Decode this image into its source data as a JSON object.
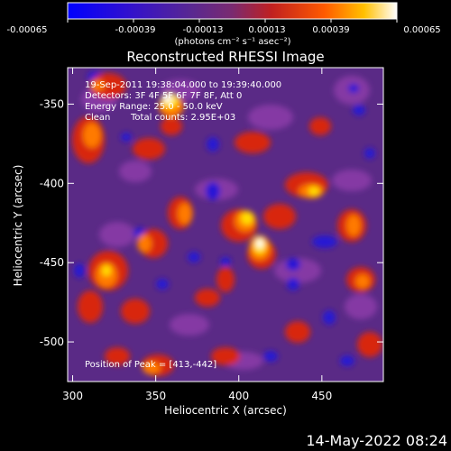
{
  "colorbar": {
    "tick_labels": [
      "-0.00065",
      "-0.00039",
      "-0.00013",
      "0.00013",
      "0.00039",
      "0.00065"
    ],
    "unit_label": "(photons cm⁻² s⁻¹ asec⁻²)",
    "range": [
      -0.00065,
      0.00065
    ]
  },
  "title": "Reconstructed RHESSI Image",
  "info": {
    "time": "19-Sep-2011 19:38:04.000 to 19:39:40.000",
    "detectors": "Detectors: 3F 4F 5F 6F 7F 8F, Att 0",
    "energy": "Energy Range: 25.0 - 50.0 keV",
    "clean": "Clean",
    "counts": "Total counts: 2.95E+03"
  },
  "peak_label": "Position of Peak = [413,-442]",
  "xaxis": {
    "label": "Heliocentric X (arcsec)",
    "tick_labels": [
      "300",
      "350",
      "400",
      "450"
    ],
    "ticks": [
      300,
      350,
      400,
      450
    ],
    "range": [
      297,
      487
    ]
  },
  "yaxis": {
    "label": "Heliocentric Y (arcsec)",
    "tick_labels": [
      "-350",
      "-400",
      "-450",
      "-500"
    ],
    "ticks": [
      -350,
      -400,
      -450,
      -500
    ],
    "range": [
      -525,
      -327
    ]
  },
  "timestamp": "14-May-2022 08:24",
  "colors": {
    "negative": "#0000ff",
    "neutral": "#7a2a90",
    "positive": "#ff2000",
    "peak": "#ffffff"
  }
}
